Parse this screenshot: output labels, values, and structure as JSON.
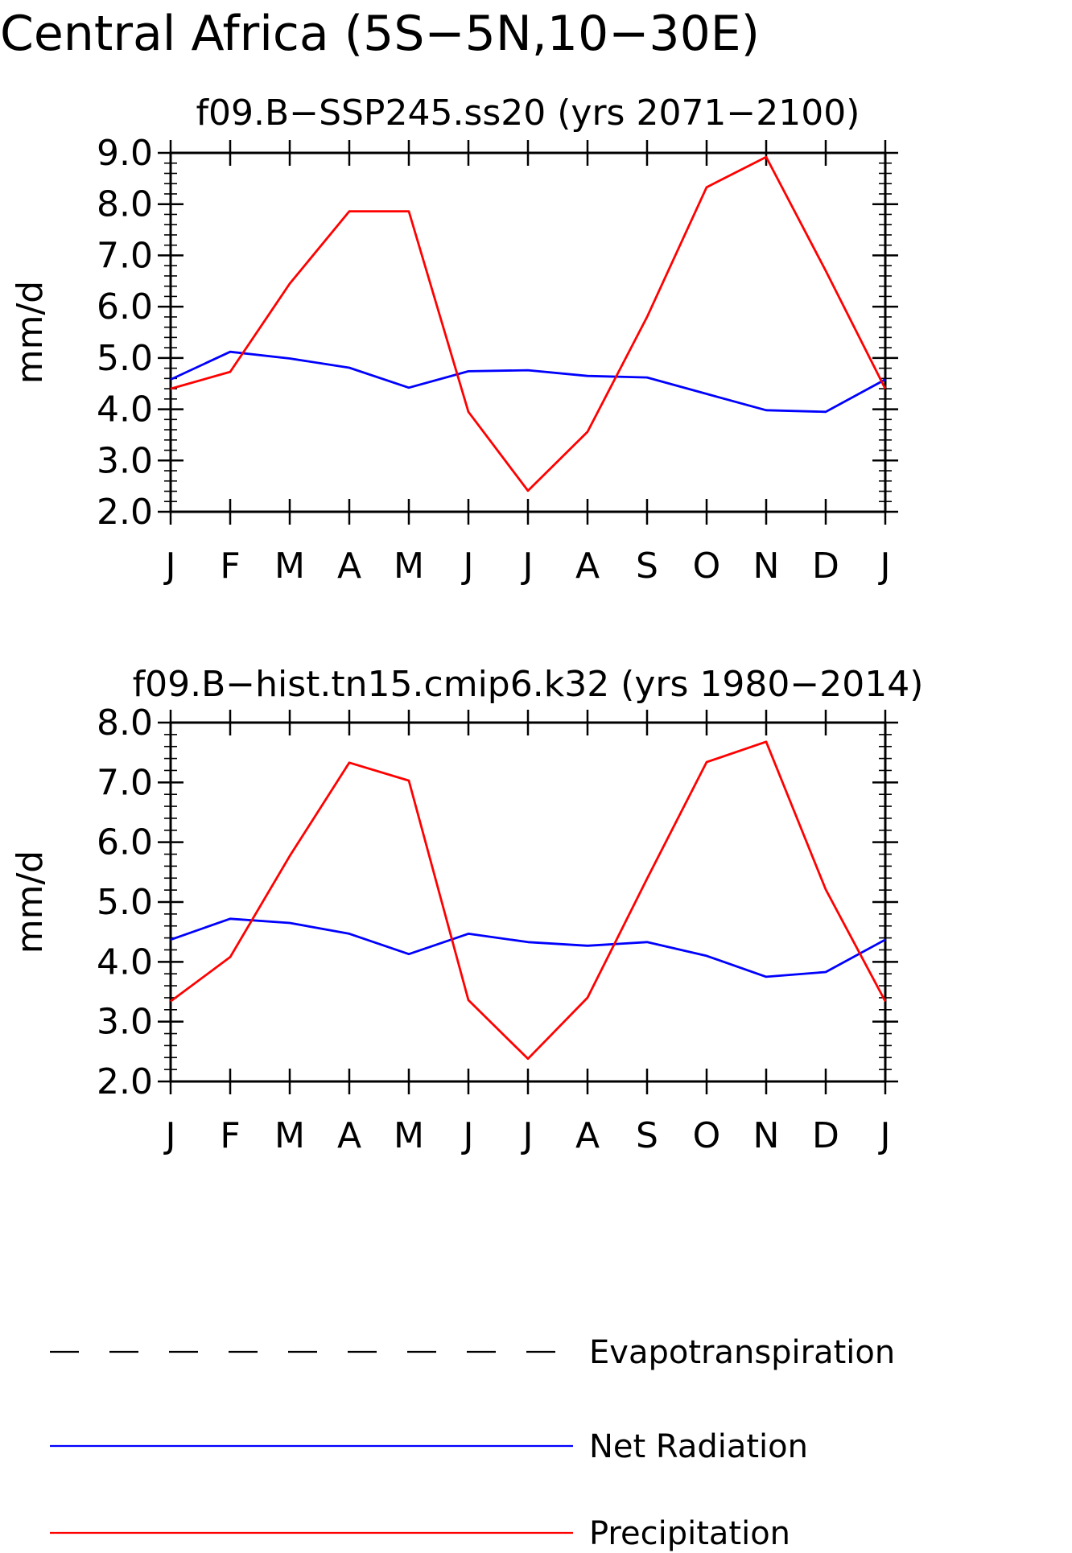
{
  "chart_data": {
    "title": "Central Africa (5S−5N,10−30E)",
    "legend": {
      "placement": "bottom",
      "entries": [
        {
          "name": "Evapotranspiration",
          "color": "#000000",
          "style": "dashed"
        },
        {
          "name": "Net Radiation",
          "color": "#0000ff",
          "style": "solid"
        },
        {
          "name": "Precipitation",
          "color": "#ff0000",
          "style": "solid"
        }
      ]
    },
    "panels": [
      {
        "type": "line",
        "title": "f09.B−SSP245.ss20 (yrs 2071−2100)",
        "ylabel": "mm/d",
        "ylim": [
          2.0,
          9.0
        ],
        "yticks": [
          "2.0",
          "3.0",
          "4.0",
          "5.0",
          "6.0",
          "7.0",
          "8.0",
          "9.0"
        ],
        "categories": [
          "J",
          "F",
          "M",
          "A",
          "M",
          "J",
          "J",
          "A",
          "S",
          "O",
          "N",
          "D",
          "J"
        ],
        "series": [
          {
            "name": "Net Radiation",
            "color": "#0000ff",
            "values": [
              4.58,
              5.12,
              4.99,
              4.81,
              4.42,
              4.74,
              4.76,
              4.65,
              4.62,
              4.3,
              3.98,
              3.95,
              4.58
            ]
          },
          {
            "name": "Precipitation",
            "color": "#ff0000",
            "values": [
              4.4,
              4.73,
              6.45,
              7.86,
              7.86,
              3.95,
              2.41,
              3.56,
              5.8,
              8.33,
              8.92,
              6.7,
              4.4
            ]
          }
        ]
      },
      {
        "type": "line",
        "title": "f09.B−hist.tn15.cmip6.k32 (yrs 1980−2014)",
        "ylabel": "mm/d",
        "ylim": [
          2.0,
          8.0
        ],
        "yticks": [
          "2.0",
          "3.0",
          "4.0",
          "5.0",
          "6.0",
          "7.0",
          "8.0"
        ],
        "categories": [
          "J",
          "F",
          "M",
          "A",
          "M",
          "J",
          "J",
          "A",
          "S",
          "O",
          "N",
          "D",
          "J"
        ],
        "series": [
          {
            "name": "Net Radiation",
            "color": "#0000ff",
            "values": [
              4.37,
              4.72,
              4.65,
              4.47,
              4.13,
              4.47,
              4.33,
              4.27,
              4.33,
              4.1,
              3.75,
              3.83,
              4.37
            ]
          },
          {
            "name": "Precipitation",
            "color": "#ff0000",
            "values": [
              3.34,
              4.08,
              5.77,
              7.33,
              7.03,
              3.36,
              2.38,
              3.4,
              5.39,
              7.34,
              7.68,
              5.21,
              3.34
            ]
          }
        ]
      }
    ]
  }
}
